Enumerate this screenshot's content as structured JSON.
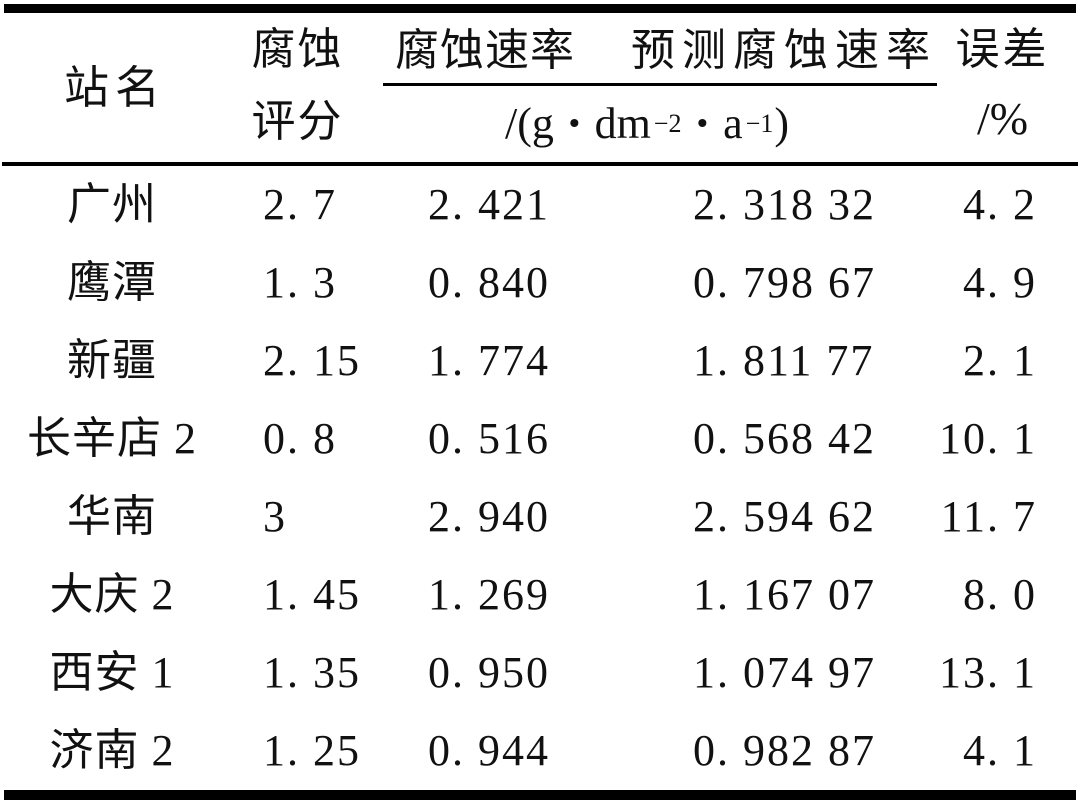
{
  "table": {
    "header": {
      "station": "站名",
      "score_line1": "腐蚀",
      "score_line2": "评分",
      "rate": "腐蚀速率",
      "predicted_rate": "预测腐蚀速率",
      "error_line1": "误差",
      "error_line2": "/%",
      "unit": {
        "open": "/(g",
        "dot1": "·",
        "base2": "dm",
        "exp2": "−2",
        "dot2": "·",
        "base1": "a",
        "exp1": "−1",
        "close": ")"
      }
    },
    "rows": [
      {
        "station": "广州",
        "score": "2. 7",
        "rate": "2. 421",
        "predicted": "2. 318 32",
        "error": "4. 2"
      },
      {
        "station": "鹰潭",
        "score": "1. 3",
        "rate": "0. 840",
        "predicted": "0. 798 67",
        "error": "4. 9"
      },
      {
        "station": "新疆",
        "score": "2. 15",
        "rate": "1. 774",
        "predicted": "1. 811 77",
        "error": "2. 1"
      },
      {
        "station": "长辛店 2",
        "score": "0. 8",
        "rate": "0. 516",
        "predicted": "0. 568 42",
        "error": "10. 1"
      },
      {
        "station": "华南",
        "score": "3",
        "rate": "2. 940",
        "predicted": "2. 594 62",
        "error": "11. 7"
      },
      {
        "station": "大庆 2",
        "score": "1. 45",
        "rate": "1. 269",
        "predicted": "1. 167 07",
        "error": "8. 0"
      },
      {
        "station": "西安 1",
        "score": "1. 35",
        "rate": "0. 950",
        "predicted": "1. 074 97",
        "error": "13. 1"
      },
      {
        "station": "济南 2",
        "score": "1. 25",
        "rate": "0. 944",
        "predicted": "0. 982 87",
        "error": "4. 1"
      }
    ],
    "colors": {
      "text": "#111111",
      "rule": "#000000",
      "background": "#ffffff"
    }
  }
}
